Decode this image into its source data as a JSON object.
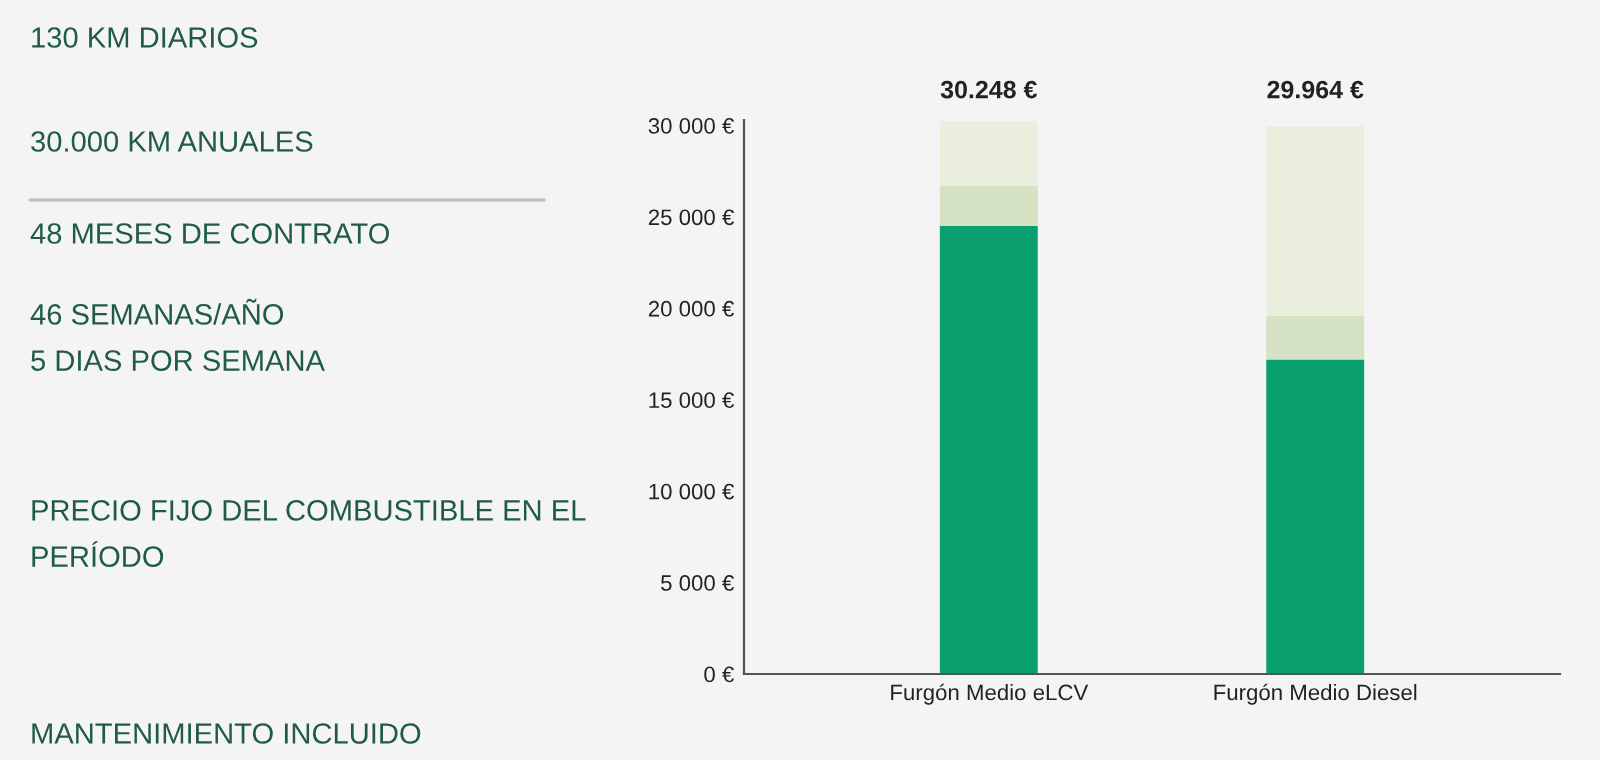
{
  "chart_data": {
    "type": "bar",
    "stacked": true,
    "categories": [
      "Furgón Medio eLCV",
      "Furgón Medio Diesel"
    ],
    "series": [
      {
        "color": "#0a9f6e",
        "values": [
          24500,
          17200
        ]
      },
      {
        "color": "#d6e2c4",
        "values": [
          2200,
          2400
        ]
      },
      {
        "color": "#e9efdc",
        "values": [
          3548,
          10364
        ]
      }
    ],
    "totals": [
      "30.248 €",
      "29.964 €"
    ],
    "ylim": [
      0,
      30300
    ],
    "yticks": [
      {
        "value": 0,
        "label": "0 €"
      },
      {
        "value": 5000,
        "label": "5 000 €"
      },
      {
        "value": 10000,
        "label": "10 000 €"
      },
      {
        "value": 15000,
        "label": "15 000 €"
      },
      {
        "value": 20000,
        "label": "20 000 €"
      },
      {
        "value": 25000,
        "label": "25 000 €"
      },
      {
        "value": 30000,
        "label": "30 000 €"
      }
    ],
    "grid": false,
    "annotations": [
      "130 KM DIARIOS",
      "30.000 KM ANUALES",
      "48 MESES DE CONTRATO",
      "46 SEMANAS/AÑO\n5 DIAS POR SEMANA",
      "PRECIO FIJO DEL COMBUSTIBLE EN EL\nPERÍODO",
      "MANTENIMIENTO INCLUIDO"
    ]
  }
}
